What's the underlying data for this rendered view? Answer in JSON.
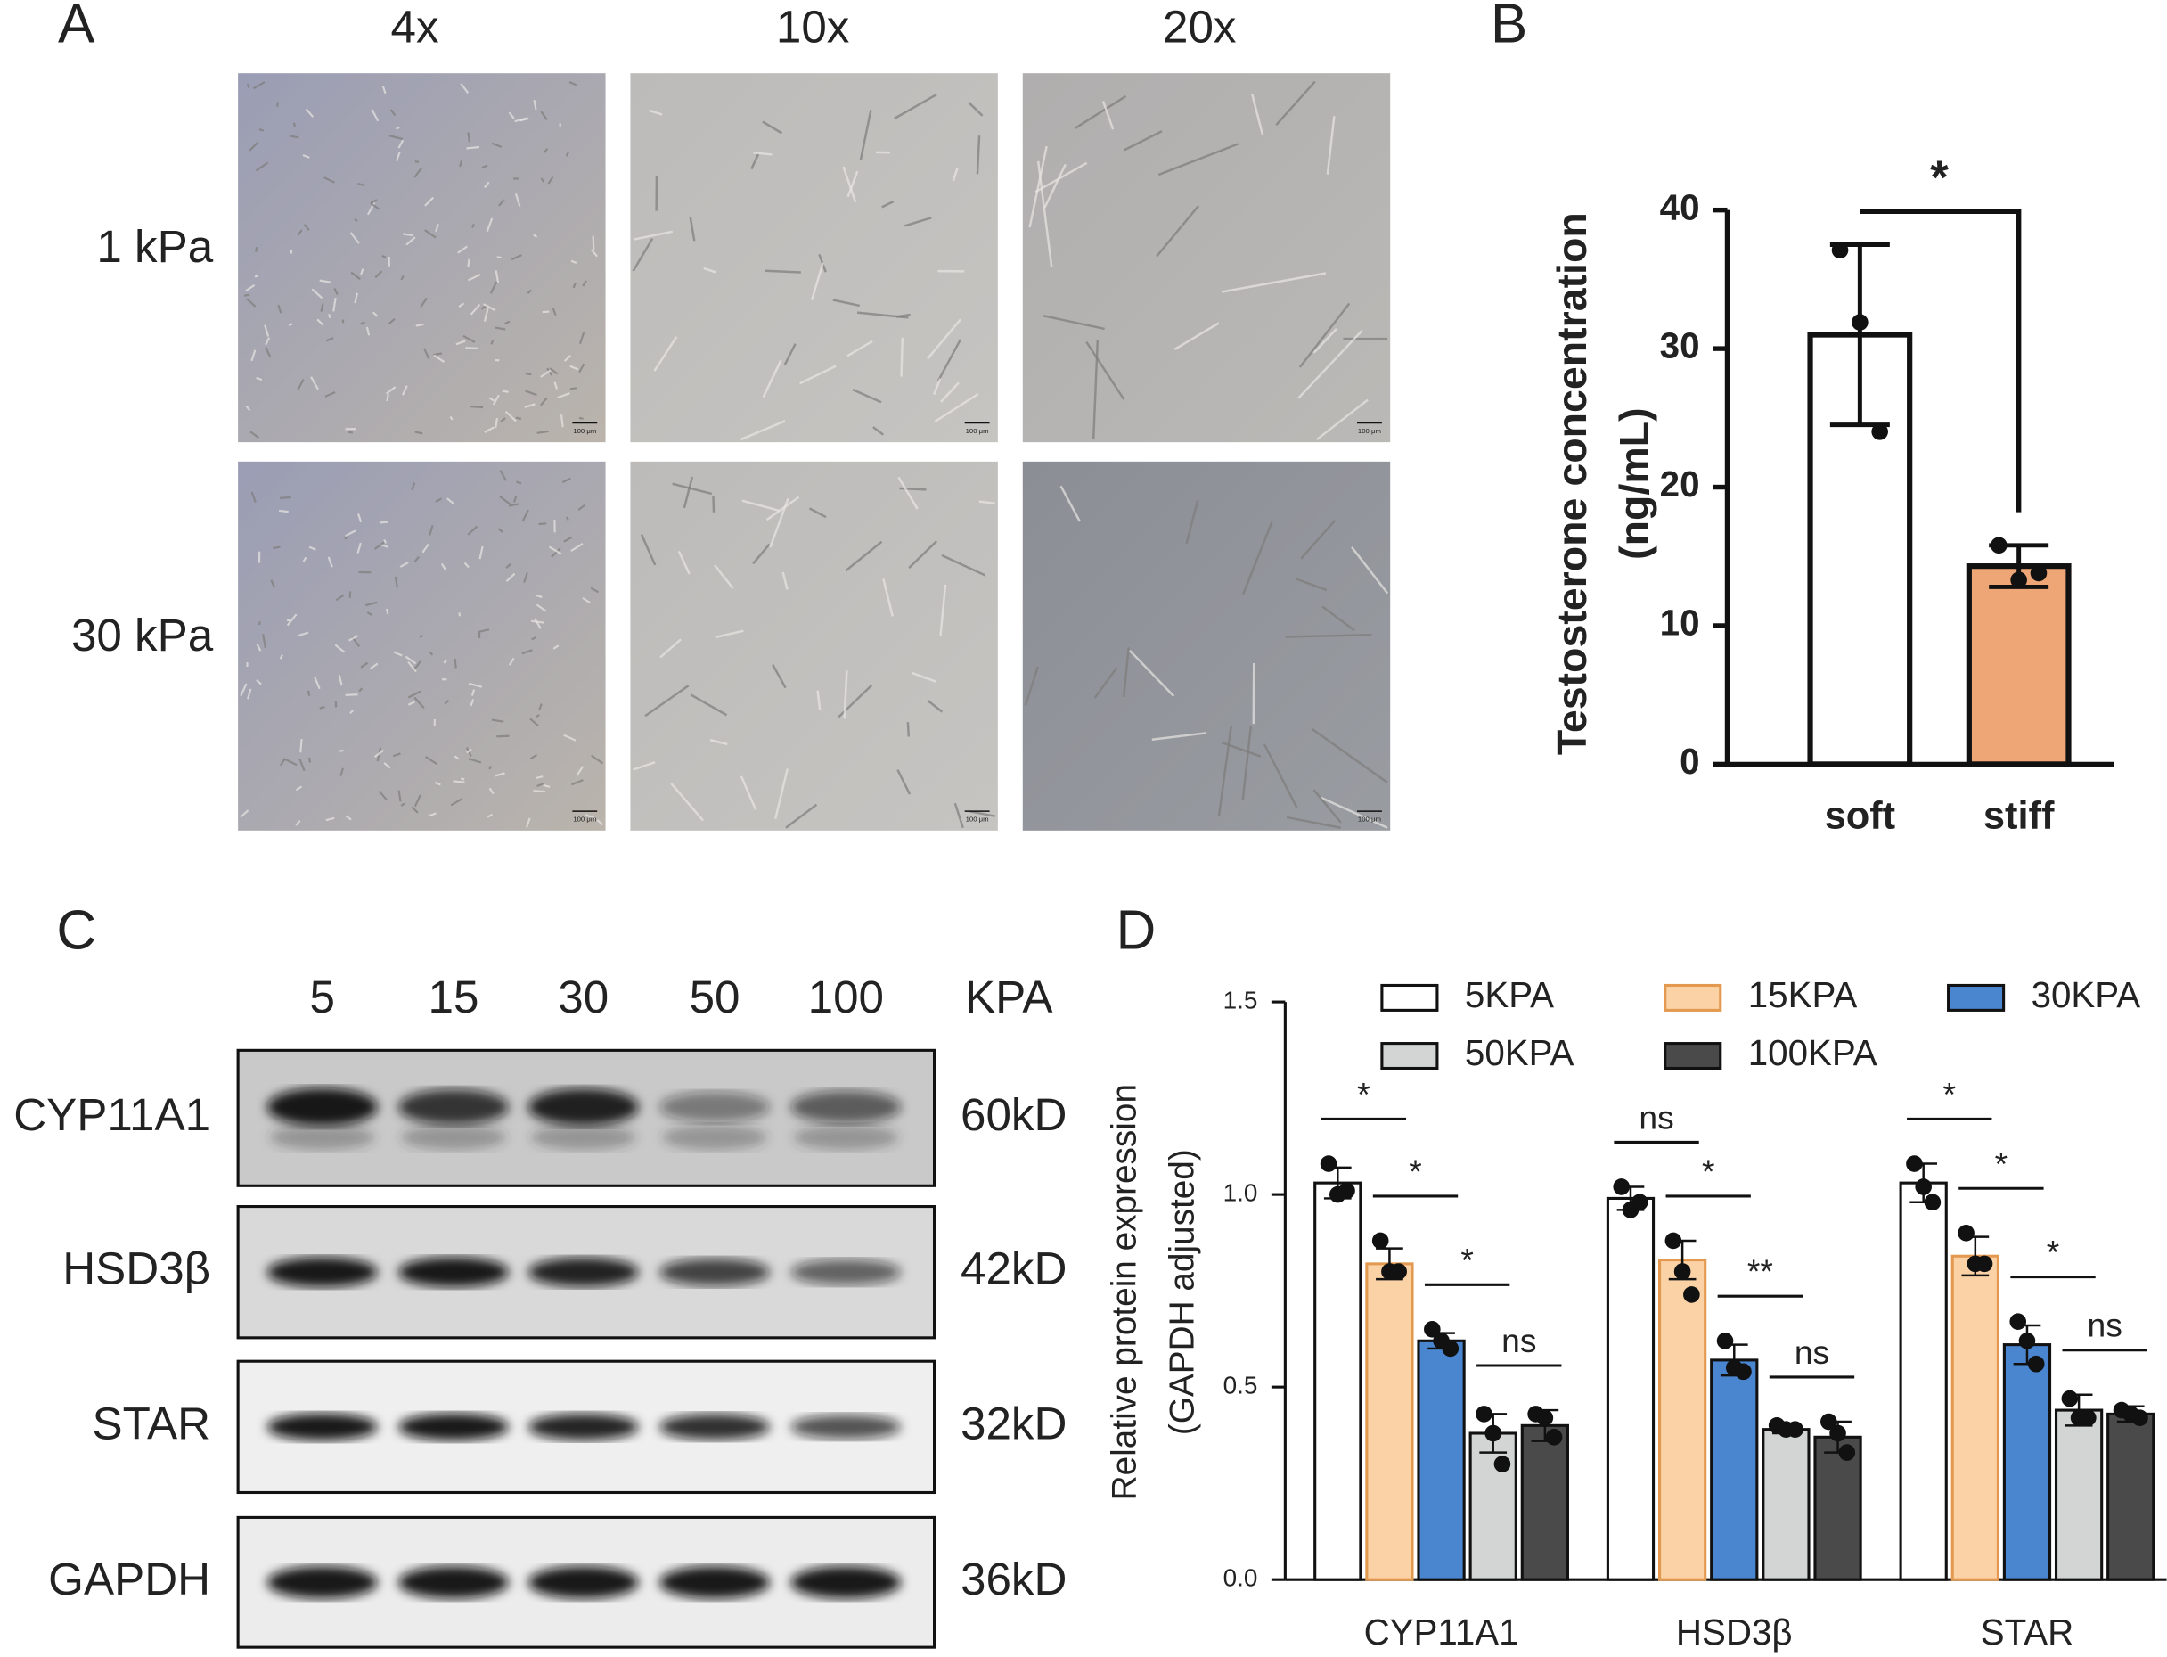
{
  "panel_a": {
    "label": "A",
    "columns": [
      "4x",
      "10x",
      "20x"
    ],
    "rows": [
      "1 kPa",
      "30 kPa"
    ],
    "scale_bar": "100 μm"
  },
  "panel_c": {
    "label": "C",
    "lanes": [
      5,
      15,
      30,
      50,
      100
    ],
    "lane_unit": "KPA",
    "rows": [
      {
        "protein": "CYP11A1",
        "size": "60kD"
      },
      {
        "protein": "HSD3β",
        "size": "42kD"
      },
      {
        "protein": "STAR",
        "size": "32kD"
      },
      {
        "protein": "GAPDH",
        "size": "36kD"
      }
    ]
  },
  "chart_data": [
    {
      "type": "bar",
      "panel": "B",
      "ylabel": [
        "Testosterone concentration",
        "(ng/mL)"
      ],
      "categories": [
        "soft",
        "stiff"
      ],
      "values": [
        31,
        14.3
      ],
      "errors": [
        6.5,
        1.5
      ],
      "colors": [
        "#ffffff",
        "#eea676"
      ],
      "points": [
        [
          37.1,
          31.9,
          24.0
        ],
        [
          15.8,
          13.3,
          13.8
        ]
      ],
      "significance": "*",
      "ylim": [
        0,
        40
      ],
      "yticks": [
        0,
        10,
        20,
        30,
        40
      ]
    },
    {
      "type": "bar",
      "panel": "D",
      "ylabel": [
        "Relative protein expression",
        "(GAPDH adjusted)"
      ],
      "categories": [
        "CYP11A1",
        "HSD3β",
        "STAR"
      ],
      "ylim": [
        0,
        1.5
      ],
      "yticks": [
        {
          "value": 0,
          "label": "0.0"
        },
        0.5,
        {
          "value": 1,
          "label": "1.0"
        },
        1.5
      ],
      "series": [
        {
          "name": "5KPA",
          "color": "#ffffff",
          "values": [
            1.03,
            0.99,
            1.03
          ],
          "errors": [
            0.04,
            0.03,
            0.05
          ],
          "points": [
            [
              1.08,
              1.0,
              1.01
            ],
            [
              1.02,
              0.96,
              0.98
            ],
            [
              1.08,
              1.02,
              0.98
            ]
          ]
        },
        {
          "name": "15KPA",
          "color": "#fad2a6",
          "values": [
            0.82,
            0.83,
            0.84
          ],
          "errors": [
            0.04,
            0.05,
            0.05
          ],
          "points": [
            [
              0.88,
              0.8,
              0.8
            ],
            [
              0.88,
              0.8,
              0.74
            ],
            [
              0.9,
              0.82,
              0.82
            ]
          ]
        },
        {
          "name": "30KPA",
          "color": "#4a86d0",
          "values": [
            0.62,
            0.57,
            0.61
          ],
          "errors": [
            0.02,
            0.04,
            0.05
          ],
          "points": [
            [
              0.65,
              0.62,
              0.6
            ],
            [
              0.62,
              0.55,
              0.54
            ],
            [
              0.67,
              0.62,
              0.56
            ]
          ]
        },
        {
          "name": "50KPA",
          "color": "#d3d5d5",
          "values": [
            0.38,
            0.39,
            0.44
          ],
          "errors": [
            0.05,
            0.01,
            0.04
          ],
          "points": [
            [
              0.43,
              0.38,
              0.3
            ],
            [
              0.4,
              0.39,
              0.39
            ],
            [
              0.47,
              0.42,
              0.42
            ]
          ]
        },
        {
          "name": "100KPA",
          "color": "#4a4a4a",
          "values": [
            0.4,
            0.37,
            0.43
          ],
          "errors": [
            0.04,
            0.04,
            0.02
          ],
          "points": [
            [
              0.43,
              0.42,
              0.37
            ],
            [
              0.41,
              0.38,
              0.33
            ],
            [
              0.44,
              0.43,
              0.42
            ]
          ]
        }
      ],
      "significance": [
        [
          "*",
          "*",
          "*",
          "ns"
        ],
        [
          "ns",
          "*",
          "**",
          "ns"
        ],
        [
          "*",
          "*",
          "*",
          "ns"
        ]
      ]
    }
  ]
}
